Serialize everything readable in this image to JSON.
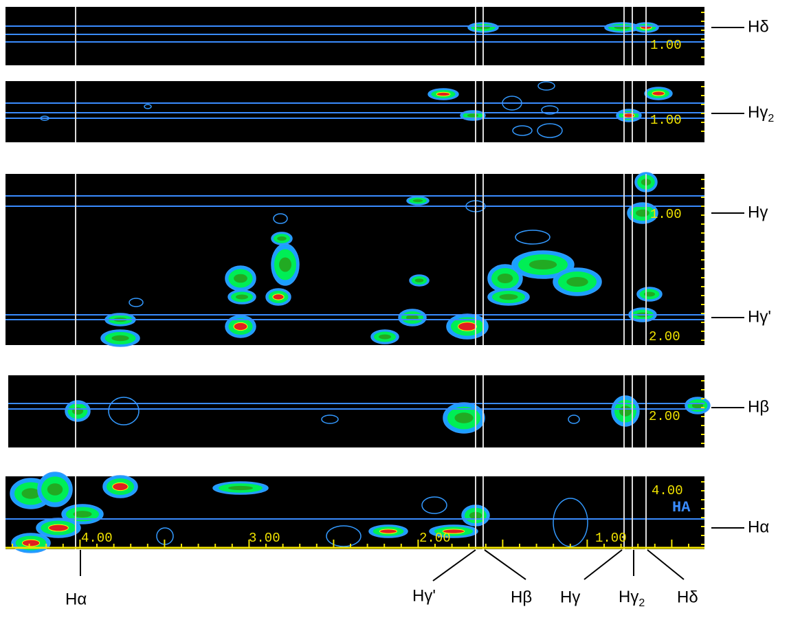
{
  "panels": [
    {
      "axis_labels": [
        "1.00"
      ],
      "side_labels": [
        {
          "text": "Hδ"
        }
      ]
    },
    {
      "axis_labels": [
        "1.00"
      ],
      "side_labels": [
        {
          "text": "Hγ",
          "sub": "2"
        }
      ]
    },
    {
      "axis_labels": [
        "1.00",
        "2.00"
      ],
      "side_labels": [
        {
          "text": "Hγ"
        },
        {
          "text": "Hγ'"
        }
      ]
    },
    {
      "axis_labels": [
        "2.00"
      ],
      "side_labels": [
        {
          "text": "Hβ"
        }
      ]
    },
    {
      "axis_labels": [
        "4.00",
        "HA"
      ],
      "side_labels": [
        {
          "text": "Hα"
        }
      ]
    }
  ],
  "bottom_axis": {
    "tick_labels": [
      "4.00",
      "3.00",
      "2.00",
      "1.00"
    ]
  },
  "bottom_labels": [
    {
      "text": "Hα"
    },
    {
      "text": "Hγ'"
    },
    {
      "text": "Hβ"
    },
    {
      "text": "Hγ"
    },
    {
      "text": "Hγ",
      "sub": "2"
    },
    {
      "text": "Hδ"
    }
  ]
}
